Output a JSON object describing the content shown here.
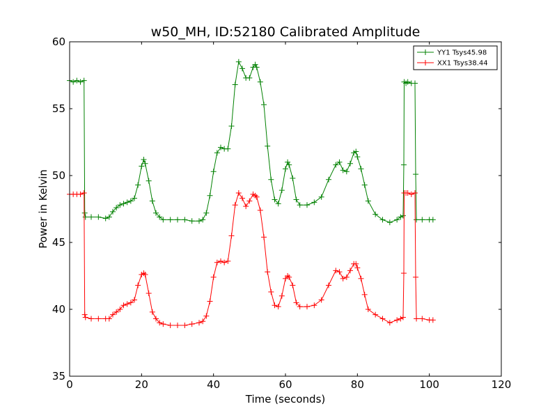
{
  "chart_data": {
    "type": "line",
    "title": "w50_MH, ID:52180 Calibrated Amplitude",
    "xlabel": "Time (seconds)",
    "ylabel": "Power in Kelvin",
    "xlim": [
      0,
      120
    ],
    "ylim": [
      35,
      60
    ],
    "xticks": [
      "0",
      "20",
      "40",
      "60",
      "80",
      "100",
      "120"
    ],
    "yticks": [
      "35",
      "40",
      "45",
      "50",
      "55",
      "60"
    ],
    "grid": false,
    "legend_position": "top-right",
    "marker": "+",
    "series": [
      {
        "name": "YY1 Tsys45.98",
        "color": "#008000",
        "points": [
          [
            0,
            57.1
          ],
          [
            1,
            57.0
          ],
          [
            2,
            57.1
          ],
          [
            3,
            57.0
          ],
          [
            4,
            57.1
          ],
          [
            4.2,
            47.2
          ],
          [
            4.4,
            46.9
          ],
          [
            6,
            46.9
          ],
          [
            8,
            46.9
          ],
          [
            10,
            46.8
          ],
          [
            11,
            46.9
          ],
          [
            12,
            47.3
          ],
          [
            13,
            47.6
          ],
          [
            14,
            47.8
          ],
          [
            15,
            47.9
          ],
          [
            16,
            48.0
          ],
          [
            17,
            48.1
          ],
          [
            18,
            48.3
          ],
          [
            19,
            49.3
          ],
          [
            20,
            50.7
          ],
          [
            20.6,
            51.2
          ],
          [
            21,
            50.9
          ],
          [
            22,
            49.6
          ],
          [
            23,
            48.1
          ],
          [
            24,
            47.2
          ],
          [
            25,
            46.9
          ],
          [
            26,
            46.7
          ],
          [
            28,
            46.7
          ],
          [
            30,
            46.7
          ],
          [
            32,
            46.7
          ],
          [
            34,
            46.6
          ],
          [
            36,
            46.6
          ],
          [
            37,
            46.7
          ],
          [
            38,
            47.2
          ],
          [
            39,
            48.5
          ],
          [
            40,
            50.3
          ],
          [
            41,
            51.7
          ],
          [
            42,
            52.1
          ],
          [
            43,
            52.0
          ],
          [
            44,
            52.0
          ],
          [
            45,
            53.7
          ],
          [
            46,
            56.8
          ],
          [
            47,
            58.5
          ],
          [
            48,
            58.0
          ],
          [
            49,
            57.3
          ],
          [
            50,
            57.3
          ],
          [
            51,
            58.1
          ],
          [
            51.6,
            58.3
          ],
          [
            52,
            58.1
          ],
          [
            53,
            57.0
          ],
          [
            54,
            55.3
          ],
          [
            55,
            52.2
          ],
          [
            56,
            49.7
          ],
          [
            57,
            48.2
          ],
          [
            58,
            47.9
          ],
          [
            59,
            48.9
          ],
          [
            60,
            50.5
          ],
          [
            60.6,
            51.0
          ],
          [
            61,
            50.8
          ],
          [
            62,
            49.8
          ],
          [
            63,
            48.2
          ],
          [
            64,
            47.8
          ],
          [
            66,
            47.8
          ],
          [
            68,
            48.0
          ],
          [
            70,
            48.4
          ],
          [
            72,
            49.7
          ],
          [
            74,
            50.8
          ],
          [
            75,
            51.0
          ],
          [
            76,
            50.4
          ],
          [
            77,
            50.3
          ],
          [
            78,
            50.9
          ],
          [
            79,
            51.7
          ],
          [
            79.6,
            51.8
          ],
          [
            80,
            51.4
          ],
          [
            81,
            50.5
          ],
          [
            82,
            49.3
          ],
          [
            83,
            48.1
          ],
          [
            85,
            47.1
          ],
          [
            87,
            46.7
          ],
          [
            89,
            46.5
          ],
          [
            91,
            46.7
          ],
          [
            92,
            46.9
          ],
          [
            92.7,
            47.0
          ],
          [
            92.9,
            50.8
          ],
          [
            93,
            57.0
          ],
          [
            93.5,
            56.9
          ],
          [
            94,
            57.0
          ],
          [
            95,
            56.9
          ],
          [
            96,
            56.9
          ],
          [
            96.2,
            50.1
          ],
          [
            96.4,
            46.7
          ],
          [
            98,
            46.7
          ],
          [
            100,
            46.7
          ],
          [
            101,
            46.7
          ]
        ]
      },
      {
        "name": "XX1 Tsys38.44",
        "color": "#ff0000",
        "points": [
          [
            0,
            48.6
          ],
          [
            1,
            48.6
          ],
          [
            2,
            48.6
          ],
          [
            3,
            48.6
          ],
          [
            4,
            48.7
          ],
          [
            4.2,
            39.6
          ],
          [
            4.4,
            39.4
          ],
          [
            6,
            39.3
          ],
          [
            8,
            39.3
          ],
          [
            10,
            39.3
          ],
          [
            11,
            39.3
          ],
          [
            12,
            39.6
          ],
          [
            13,
            39.8
          ],
          [
            14,
            40.0
          ],
          [
            15,
            40.3
          ],
          [
            16,
            40.4
          ],
          [
            17,
            40.5
          ],
          [
            18,
            40.7
          ],
          [
            19,
            41.8
          ],
          [
            20,
            42.6
          ],
          [
            20.6,
            42.7
          ],
          [
            21,
            42.6
          ],
          [
            22,
            41.2
          ],
          [
            23,
            39.8
          ],
          [
            24,
            39.3
          ],
          [
            25,
            39.0
          ],
          [
            26,
            38.9
          ],
          [
            28,
            38.8
          ],
          [
            30,
            38.8
          ],
          [
            32,
            38.8
          ],
          [
            34,
            38.9
          ],
          [
            36,
            39.0
          ],
          [
            37,
            39.1
          ],
          [
            38,
            39.5
          ],
          [
            39,
            40.6
          ],
          [
            40,
            42.4
          ],
          [
            41,
            43.5
          ],
          [
            42,
            43.6
          ],
          [
            43,
            43.5
          ],
          [
            44,
            43.6
          ],
          [
            45,
            45.5
          ],
          [
            46,
            47.8
          ],
          [
            47,
            48.7
          ],
          [
            48,
            48.3
          ],
          [
            49,
            47.7
          ],
          [
            50,
            48.1
          ],
          [
            51,
            48.6
          ],
          [
            51.6,
            48.5
          ],
          [
            52,
            48.4
          ],
          [
            53,
            47.4
          ],
          [
            54,
            45.4
          ],
          [
            55,
            42.8
          ],
          [
            56,
            41.3
          ],
          [
            57,
            40.3
          ],
          [
            58,
            40.2
          ],
          [
            59,
            41.0
          ],
          [
            60,
            42.3
          ],
          [
            60.6,
            42.5
          ],
          [
            61,
            42.4
          ],
          [
            62,
            41.8
          ],
          [
            63,
            40.5
          ],
          [
            64,
            40.2
          ],
          [
            66,
            40.2
          ],
          [
            68,
            40.3
          ],
          [
            70,
            40.7
          ],
          [
            72,
            41.8
          ],
          [
            74,
            42.9
          ],
          [
            75,
            42.8
          ],
          [
            76,
            42.3
          ],
          [
            77,
            42.4
          ],
          [
            78,
            42.9
          ],
          [
            79,
            43.4
          ],
          [
            79.6,
            43.4
          ],
          [
            80,
            43.1
          ],
          [
            81,
            42.3
          ],
          [
            82,
            41.1
          ],
          [
            83,
            40.0
          ],
          [
            85,
            39.6
          ],
          [
            87,
            39.3
          ],
          [
            89,
            39.0
          ],
          [
            91,
            39.2
          ],
          [
            92,
            39.3
          ],
          [
            92.7,
            39.4
          ],
          [
            92.9,
            42.7
          ],
          [
            93,
            48.7
          ],
          [
            93.5,
            48.7
          ],
          [
            94,
            48.7
          ],
          [
            95,
            48.6
          ],
          [
            96,
            48.7
          ],
          [
            96.2,
            42.4
          ],
          [
            96.4,
            39.3
          ],
          [
            98,
            39.3
          ],
          [
            100,
            39.2
          ],
          [
            101,
            39.2
          ]
        ]
      }
    ]
  }
}
